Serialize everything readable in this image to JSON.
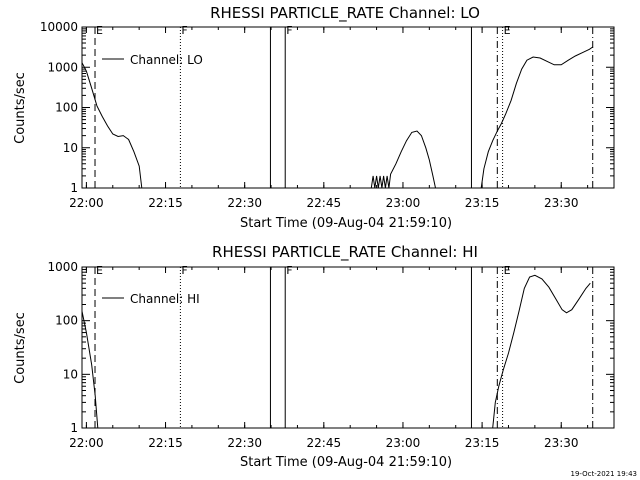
{
  "footer": {
    "date_stamp": "19-Oct-2021 19:43"
  },
  "chart_data": [
    {
      "type": "line",
      "title": "RHESSI PARTICLE_RATE Channel: LO",
      "xlabel": "Start Time (09-Aug-04 21:59:10)",
      "ylabel": "Counts/sec",
      "yscale": "log",
      "xlim": [
        "21:59:10",
        "23:40:00"
      ],
      "ylim": [
        1,
        10000
      ],
      "x_ticks": [
        "22:00",
        "22:15",
        "22:30",
        "22:45",
        "23:00",
        "23:15",
        "23:30"
      ],
      "y_ticks": [
        1,
        10,
        100,
        1000,
        10000
      ],
      "y_tick_labels": [
        "1",
        "10",
        "100",
        "1000",
        "10000"
      ],
      "legend": {
        "placement": "top-left",
        "label": "Channel: LO"
      },
      "markers": [
        {
          "time": "22:01:38",
          "style": "dashed",
          "label": "E"
        },
        {
          "time": "22:17:49",
          "style": "dotted",
          "label": "F"
        },
        {
          "time": "22:34:53",
          "style": "solid",
          "label": ""
        },
        {
          "time": "22:37:41",
          "style": "solid",
          "label": "F"
        },
        {
          "time": "23:12:59",
          "style": "solid",
          "label": ""
        },
        {
          "time": "23:17:53",
          "style": "dashdot",
          "label": ""
        },
        {
          "time": "23:18:53",
          "style": "dotted",
          "label": "E"
        },
        {
          "time": "23:35:58",
          "style": "dashdot",
          "label": ""
        }
      ],
      "series": [
        {
          "name": "Channel: LO",
          "segments": [
            [
              [
                "21:59:10",
                1300
              ],
              [
                "22:00:00",
                800
              ],
              [
                "22:01:00",
                300
              ],
              [
                "22:02:00",
                110
              ],
              [
                "22:03:00",
                60
              ],
              [
                "22:04:00",
                35
              ],
              [
                "22:05:00",
                22
              ],
              [
                "22:06:00",
                19
              ],
              [
                "22:07:00",
                20
              ],
              [
                "22:08:00",
                16
              ],
              [
                "22:09:00",
                8
              ],
              [
                "22:10:00",
                3.5
              ],
              [
                "22:10:30",
                1
              ]
            ],
            [
              [
                "22:54:00",
                1
              ],
              [
                "22:54:20",
                2
              ],
              [
                "22:54:40",
                1
              ],
              [
                "22:55:00",
                2
              ],
              [
                "22:55:20",
                1
              ],
              [
                "22:55:40",
                2
              ],
              [
                "22:56:00",
                1
              ],
              [
                "22:56:20",
                2
              ],
              [
                "22:56:40",
                1
              ],
              [
                "22:57:00",
                2
              ],
              [
                "22:57:20",
                1
              ],
              [
                "22:57:40",
                2.2
              ],
              [
                "22:58:40",
                4
              ],
              [
                "22:59:40",
                8
              ],
              [
                "23:00:40",
                15
              ],
              [
                "23:01:40",
                24
              ],
              [
                "23:02:40",
                26
              ],
              [
                "23:03:30",
                20
              ],
              [
                "23:04:20",
                10
              ],
              [
                "23:05:00",
                5
              ],
              [
                "23:05:40",
                2
              ],
              [
                "23:06:10",
                1
              ]
            ],
            [
              [
                "23:14:50",
                1
              ],
              [
                "23:15:20",
                3
              ],
              [
                "23:16:10",
                8
              ],
              [
                "23:17:00",
                15
              ],
              [
                "23:17:50",
                25
              ],
              [
                "23:18:40",
                40
              ],
              [
                "23:19:30",
                70
              ],
              [
                "23:20:30",
                150
              ],
              [
                "23:21:30",
                400
              ],
              [
                "23:22:30",
                900
              ],
              [
                "23:23:30",
                1500
              ],
              [
                "23:24:40",
                1800
              ],
              [
                "23:26:00",
                1700
              ],
              [
                "23:27:20",
                1400
              ],
              [
                "23:28:40",
                1150
              ],
              [
                "23:30:00",
                1150
              ],
              [
                "23:31:20",
                1500
              ],
              [
                "23:32:40",
                1900
              ],
              [
                "23:34:00",
                2300
              ],
              [
                "23:35:20",
                2800
              ],
              [
                "23:36:00",
                3200
              ]
            ]
          ]
        }
      ]
    },
    {
      "type": "line",
      "title": "RHESSI PARTICLE_RATE Channel: HI",
      "xlabel": "Start Time (09-Aug-04 21:59:10)",
      "ylabel": "Counts/sec",
      "yscale": "log",
      "xlim": [
        "21:59:10",
        "23:40:00"
      ],
      "ylim": [
        1,
        1000
      ],
      "x_ticks": [
        "22:00",
        "22:15",
        "22:30",
        "22:45",
        "23:00",
        "23:15",
        "23:30"
      ],
      "y_ticks": [
        1,
        10,
        100,
        1000
      ],
      "y_tick_labels": [
        "1",
        "10",
        "100",
        "1000"
      ],
      "legend": {
        "placement": "top-left",
        "label": "Channel: HI"
      },
      "markers": [
        {
          "time": "22:01:38",
          "style": "dashed",
          "label": "E"
        },
        {
          "time": "22:17:49",
          "style": "dotted",
          "label": "F"
        },
        {
          "time": "22:34:53",
          "style": "solid",
          "label": ""
        },
        {
          "time": "22:37:41",
          "style": "solid",
          "label": "F"
        },
        {
          "time": "23:12:59",
          "style": "solid",
          "label": ""
        },
        {
          "time": "23:17:53",
          "style": "dashdot",
          "label": ""
        },
        {
          "time": "23:18:53",
          "style": "dotted",
          "label": "E"
        },
        {
          "time": "23:35:58",
          "style": "dashdot",
          "label": ""
        }
      ],
      "series": [
        {
          "name": "Channel: HI",
          "segments": [
            [
              [
                "21:59:10",
                150
              ],
              [
                "22:00:00",
                60
              ],
              [
                "22:01:00",
                15
              ],
              [
                "22:01:40",
                4
              ],
              [
                "22:02:10",
                1
              ]
            ],
            [
              [
                "23:17:00",
                1
              ],
              [
                "23:17:30",
                3
              ],
              [
                "23:18:10",
                6
              ],
              [
                "23:19:00",
                12
              ],
              [
                "23:20:00",
                25
              ],
              [
                "23:21:00",
                60
              ],
              [
                "23:22:00",
                150
              ],
              [
                "23:23:00",
                400
              ],
              [
                "23:24:00",
                650
              ],
              [
                "23:25:00",
                700
              ],
              [
                "23:26:20",
                600
              ],
              [
                "23:27:40",
                420
              ],
              [
                "23:29:00",
                250
              ],
              [
                "23:30:10",
                160
              ],
              [
                "23:31:00",
                140
              ],
              [
                "23:32:00",
                160
              ],
              [
                "23:33:20",
                250
              ],
              [
                "23:34:40",
                400
              ],
              [
                "23:35:30",
                500
              ]
            ]
          ]
        }
      ]
    }
  ]
}
